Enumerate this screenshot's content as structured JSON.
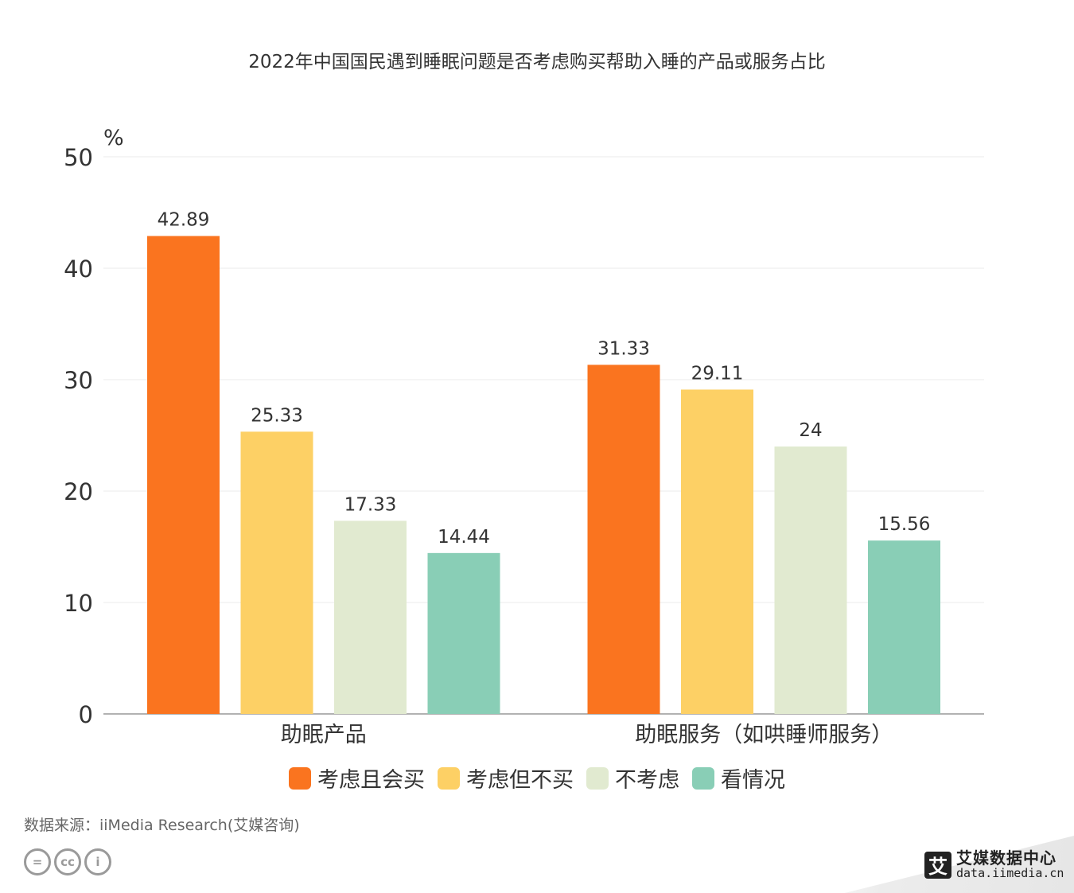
{
  "chart_data": {
    "type": "bar",
    "title": "2022年中国国民遇到睡眠问题是否考虑购买帮助入睡的产品或服务占比",
    "ylabel": "%",
    "ylim": [
      0,
      50
    ],
    "yticks": [
      "0",
      "10",
      "20",
      "30",
      "40",
      "50"
    ],
    "categories": [
      "助眠产品",
      "助眠服务（如哄睡师服务）"
    ],
    "series": [
      {
        "name": "考虑且会买",
        "color": "#fa741f",
        "values": [
          42.89,
          31.33
        ],
        "labels": [
          "42.89",
          "31.33"
        ]
      },
      {
        "name": "考虑但不买",
        "color": "#fdd065",
        "values": [
          25.33,
          29.11
        ],
        "labels": [
          "25.33",
          "29.11"
        ]
      },
      {
        "name": "不考虑",
        "color": "#e1ead0",
        "values": [
          17.33,
          24
        ],
        "labels": [
          "17.33",
          "24"
        ]
      },
      {
        "name": "看情况",
        "color": "#89ceb6",
        "values": [
          14.44,
          15.56
        ],
        "labels": [
          "14.44",
          "15.56"
        ]
      }
    ],
    "grid": true,
    "legend_position": "bottom"
  },
  "source": "数据来源：iiMedia Research(艾媒咨询)",
  "license_icons": [
    "equals-icon",
    "cc-icon",
    "person-icon"
  ],
  "license_glyphs": [
    "=",
    "cc",
    "i"
  ],
  "brand": {
    "logo_glyph": "艾",
    "name": "艾媒数据中心",
    "url": "data.iimedia.cn"
  }
}
